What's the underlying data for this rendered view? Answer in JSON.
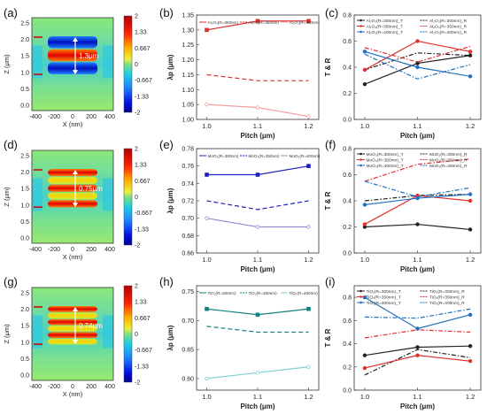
{
  "panel_letters": [
    "(a)",
    "(b)",
    "(c)",
    "(d)",
    "(e)",
    "(f)",
    "(g)",
    "(h)",
    "(i)"
  ],
  "field_maps": [
    {
      "xlabel": "X (nm)",
      "ylabel": "Z (μm)",
      "xticks": [
        "-400",
        "-200",
        "0",
        "200",
        "400"
      ],
      "yticks": [
        "2.5",
        "2.0",
        "1.5",
        "1.0",
        "0.5",
        "0.0"
      ],
      "annotation": "1.3μm",
      "colorbar_ticks": [
        "2",
        "1.33",
        "0.667",
        "0",
        "-0.667",
        "-1.33",
        "-2"
      ],
      "layers": 3
    },
    {
      "xlabel": "X (nm)",
      "ylabel": "Z (μm)",
      "xticks": [
        "-400",
        "-200",
        "0",
        "200",
        "400"
      ],
      "yticks": [
        "2.5",
        "2.0",
        "1.5",
        "1.0",
        "0.5",
        "0.0"
      ],
      "annotation": "0.75μm",
      "colorbar_ticks": [
        "2",
        "1.33",
        "0.667",
        "0",
        "-0.667",
        "-1.33",
        "-2"
      ],
      "layers": 5
    },
    {
      "xlabel": "X (nm)",
      "ylabel": "Z (μm)",
      "xticks": [
        "-400",
        "-200",
        "0",
        "200",
        "400"
      ],
      "yticks": [
        "2.5",
        "2.0",
        "1.5",
        "1.0",
        "0.5",
        "0.0"
      ],
      "annotation": "0.74μm",
      "colorbar_ticks": [
        "2",
        "1.33",
        "0.667",
        "0",
        "-0.667",
        "-1.33",
        "-2"
      ],
      "layers": 6
    }
  ],
  "colors": {
    "R300": "#e03030",
    "R350": "#2040d0",
    "R400": "#10a0a0",
    "black": "#222222",
    "blue": "#2070c0"
  },
  "chart_data": [
    {
      "type": "line",
      "xlabel": "Pitch (μm)",
      "ylabel": "λp (μm)",
      "x": [
        1.0,
        1.1,
        1.2
      ],
      "xticks": [
        "1.0",
        "1.1",
        "1.2"
      ],
      "ylim": [
        1.0,
        1.35
      ],
      "yticks": [
        1.0,
        1.05,
        1.1,
        1.15,
        1.2,
        1.25,
        1.3,
        1.35
      ],
      "ytick_labels": [
        "1.00",
        "1.05",
        "1.10",
        "1.15",
        "1.20",
        "1.25",
        "1.30",
        "1.35"
      ],
      "series": [
        {
          "name": "Al₂O₃(R=300nm)",
          "values": [
            1.3,
            1.33,
            1.33
          ],
          "color": "#e03030",
          "dash": "solid",
          "marker": "square"
        },
        {
          "name": "Al₂O₃(R=350nm)",
          "values": [
            1.15,
            1.13,
            1.13
          ],
          "color": "#e03030",
          "dash": "dashed",
          "marker": "none"
        },
        {
          "name": "Al₂O₃(R=400nm)",
          "values": [
            1.05,
            1.04,
            1.01
          ],
          "color": "#f0a0a0",
          "dash": "solid",
          "marker": "circle"
        }
      ]
    },
    {
      "type": "line",
      "xlabel": "Pitch (μm)",
      "ylabel": "T & R",
      "x": [
        1.0,
        1.1,
        1.2
      ],
      "xticks": [
        "1.0",
        "1.1",
        "1.2"
      ],
      "ylim": [
        0.0,
        0.8
      ],
      "yticks": [
        0.0,
        0.2,
        0.4,
        0.6,
        0.8
      ],
      "ytick_labels": [
        "0.0",
        "0.2",
        "0.4",
        "0.6",
        "0.8"
      ],
      "series": [
        {
          "name": "Al₂O₃(R=300nm)_T",
          "values": [
            0.27,
            0.43,
            0.49
          ],
          "color": "#222222",
          "dash": "solid",
          "marker": "circle"
        },
        {
          "name": "Al₂O₃(R=300nm)_R",
          "values": [
            0.38,
            0.51,
            0.49
          ],
          "color": "#222222",
          "dash": "dashdot",
          "marker": "none"
        },
        {
          "name": "Al₂O₃(R=350nm)_T",
          "values": [
            0.38,
            0.6,
            0.52
          ],
          "color": "#e03030",
          "dash": "solid",
          "marker": "circle"
        },
        {
          "name": "Al₂O₃(R=350nm)_R",
          "values": [
            0.55,
            0.44,
            0.56
          ],
          "color": "#e03030",
          "dash": "dashdot",
          "marker": "none"
        },
        {
          "name": "Al₂O₃(R=400nm)_T",
          "values": [
            0.52,
            0.4,
            0.33
          ],
          "color": "#2070c0",
          "dash": "solid",
          "marker": "circle"
        },
        {
          "name": "Al₂O₃(R=400nm)_R",
          "values": [
            0.5,
            0.31,
            0.42
          ],
          "color": "#2070c0",
          "dash": "dashdot",
          "marker": "none"
        }
      ]
    },
    {
      "type": "line",
      "xlabel": "Pitch (μm)",
      "ylabel": "λp (μm)",
      "x": [
        1.0,
        1.1,
        1.2
      ],
      "xticks": [
        "1.0",
        "1.1",
        "1.2"
      ],
      "ylim": [
        0.66,
        0.78
      ],
      "yticks": [
        0.66,
        0.68,
        0.7,
        0.72,
        0.74,
        0.76,
        0.78
      ],
      "ytick_labels": [
        "0.66",
        "0.68",
        "0.70",
        "0.72",
        "0.74",
        "0.76",
        "0.78"
      ],
      "series": [
        {
          "name": "MoO₃(R=300nm)",
          "values": [
            0.75,
            0.75,
            0.76
          ],
          "color": "#2020c0",
          "dash": "solid",
          "marker": "square"
        },
        {
          "name": "MoO₃(R=350nm)",
          "values": [
            0.72,
            0.71,
            0.72
          ],
          "color": "#2020c0",
          "dash": "dashed",
          "marker": "none"
        },
        {
          "name": "MoO₃(R=400nm)",
          "values": [
            0.7,
            0.69,
            0.69
          ],
          "color": "#9090d8",
          "dash": "solid",
          "marker": "circle"
        }
      ]
    },
    {
      "type": "line",
      "xlabel": "Pitch (μm)",
      "ylabel": "T & R",
      "x": [
        1.0,
        1.1,
        1.2
      ],
      "xticks": [
        "1.0",
        "1.1",
        "1.2"
      ],
      "ylim": [
        0.0,
        0.8
      ],
      "yticks": [
        0.0,
        0.2,
        0.4,
        0.6,
        0.8
      ],
      "ytick_labels": [
        "0.0",
        "0.2",
        "0.4",
        "0.6",
        "0.8"
      ],
      "series": [
        {
          "name": "MoO₃(R=300nm)_T",
          "values": [
            0.2,
            0.22,
            0.18
          ],
          "color": "#222222",
          "dash": "solid",
          "marker": "circle"
        },
        {
          "name": "MoO₃(R=300nm)_R",
          "values": [
            0.4,
            0.44,
            0.45
          ],
          "color": "#222222",
          "dash": "dashdot",
          "marker": "none"
        },
        {
          "name": "MoO₃(R=350nm)_T",
          "values": [
            0.22,
            0.44,
            0.4
          ],
          "color": "#e03030",
          "dash": "solid",
          "marker": "circle"
        },
        {
          "name": "MoO₃(R=350nm)_R",
          "values": [
            0.55,
            0.68,
            0.72
          ],
          "color": "#e03030",
          "dash": "dashdot",
          "marker": "none"
        },
        {
          "name": "MoO₃(R=400nm)_T",
          "values": [
            0.37,
            0.42,
            0.45
          ],
          "color": "#2070c0",
          "dash": "solid",
          "marker": "circle"
        },
        {
          "name": "MoO₃(R=400nm)_R",
          "values": [
            0.55,
            0.43,
            0.5
          ],
          "color": "#2070c0",
          "dash": "dashdot",
          "marker": "none"
        }
      ]
    },
    {
      "type": "line",
      "xlabel": "Pitch (μm)",
      "ylabel": "λp (μm)",
      "x": [
        1.0,
        1.1,
        1.2
      ],
      "xticks": [
        "1.0",
        "1.1",
        "1.2"
      ],
      "ylim": [
        0.58,
        0.76
      ],
      "yticks": [
        0.6,
        0.65,
        0.7,
        0.75
      ],
      "ytick_labels": [
        "0.60",
        "0.65",
        "0.70",
        "0.75"
      ],
      "series": [
        {
          "name": "TiO₂(R=300nm)",
          "values": [
            0.72,
            0.71,
            0.72
          ],
          "color": "#108080",
          "dash": "solid",
          "marker": "square"
        },
        {
          "name": "TiO₂(R=350nm)",
          "values": [
            0.69,
            0.68,
            0.68
          ],
          "color": "#108080",
          "dash": "dashed",
          "marker": "none"
        },
        {
          "name": "TiO₂(R=400nm)",
          "values": [
            0.6,
            0.61,
            0.62
          ],
          "color": "#80d0d0",
          "dash": "solid",
          "marker": "circle"
        }
      ]
    },
    {
      "type": "line",
      "xlabel": "Pitch (μm)",
      "ylabel": "T & R",
      "x": [
        1.0,
        1.1,
        1.2
      ],
      "xticks": [
        "1.0",
        "1.1",
        "1.2"
      ],
      "ylim": [
        0.0,
        0.9
      ],
      "yticks": [
        0.0,
        0.2,
        0.4,
        0.6,
        0.8
      ],
      "ytick_labels": [
        "0.0",
        "0.2",
        "0.4",
        "0.6",
        "0.8"
      ],
      "series": [
        {
          "name": "TiO₂(R=300nm)_T",
          "values": [
            0.3,
            0.37,
            0.38
          ],
          "color": "#222222",
          "dash": "solid",
          "marker": "circle"
        },
        {
          "name": "TiO₂(R=300nm)_R",
          "values": [
            0.13,
            0.35,
            0.28
          ],
          "color": "#222222",
          "dash": "dashdot",
          "marker": "none"
        },
        {
          "name": "TiO₂(R=350nm)_T",
          "values": [
            0.19,
            0.3,
            0.25
          ],
          "color": "#e03030",
          "dash": "solid",
          "marker": "circle"
        },
        {
          "name": "TiO₂(R=350nm)_R",
          "values": [
            0.45,
            0.52,
            0.5
          ],
          "color": "#e03030",
          "dash": "dashdot",
          "marker": "none"
        },
        {
          "name": "TiO₂(R=400nm)_T",
          "values": [
            0.8,
            0.53,
            0.65
          ],
          "color": "#2070c0",
          "dash": "solid",
          "marker": "circle"
        },
        {
          "name": "TiO₂(R=400nm)_R",
          "values": [
            0.63,
            0.62,
            0.7
          ],
          "color": "#2070c0",
          "dash": "dashdot",
          "marker": "none"
        }
      ]
    }
  ]
}
